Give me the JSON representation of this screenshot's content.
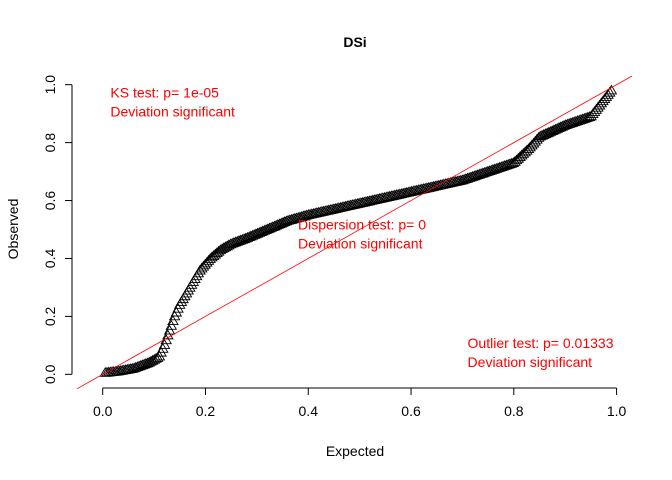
{
  "chart_data": {
    "type": "scatter",
    "title": "DSi",
    "xlabel": "Expected",
    "ylabel": "Observed",
    "xlim": [
      -0.05,
      1.03
    ],
    "ylim": [
      -0.03,
      1.03
    ],
    "x_ticks": [
      0.0,
      0.2,
      0.4,
      0.6,
      0.8,
      1.0
    ],
    "x_tick_labels": [
      "0.0",
      "0.2",
      "0.4",
      "0.6",
      "0.8",
      "1.0"
    ],
    "y_ticks": [
      0.0,
      0.2,
      0.4,
      0.6,
      0.8,
      1.0
    ],
    "y_tick_labels": [
      "0.0",
      "0.2",
      "0.4",
      "0.6",
      "0.8",
      "1.0"
    ],
    "marker": "triangle-open",
    "reference_line": {
      "slope": 1,
      "intercept": 0,
      "color": "#ff0000"
    },
    "grid": false,
    "annotations": [
      {
        "lines": [
          "KS test: p= 1e-05",
          "Deviation  significant"
        ],
        "x": 0.015,
        "y": 0.955
      },
      {
        "lines": [
          "Dispersion test: p= 0",
          "Deviation  significant"
        ],
        "x": 0.38,
        "y": 0.5
      },
      {
        "lines": [
          "Outlier test: p= 0.01333",
          "Deviation  significant"
        ],
        "x": 0.71,
        "y": 0.09
      }
    ],
    "curve": {
      "x": [
        0.005,
        0.03,
        0.06,
        0.09,
        0.11,
        0.12,
        0.13,
        0.14,
        0.15,
        0.17,
        0.19,
        0.21,
        0.23,
        0.25,
        0.28,
        0.32,
        0.36,
        0.4,
        0.45,
        0.5,
        0.55,
        0.6,
        0.65,
        0.7,
        0.75,
        0.8,
        0.83,
        0.85,
        0.9,
        0.95,
        0.99
      ],
      "y": [
        0.005,
        0.01,
        0.02,
        0.04,
        0.06,
        0.1,
        0.15,
        0.2,
        0.24,
        0.3,
        0.36,
        0.4,
        0.43,
        0.45,
        0.47,
        0.5,
        0.53,
        0.55,
        0.57,
        0.59,
        0.61,
        0.63,
        0.65,
        0.67,
        0.7,
        0.73,
        0.78,
        0.82,
        0.86,
        0.89,
        0.98
      ]
    },
    "n_points": 300
  }
}
